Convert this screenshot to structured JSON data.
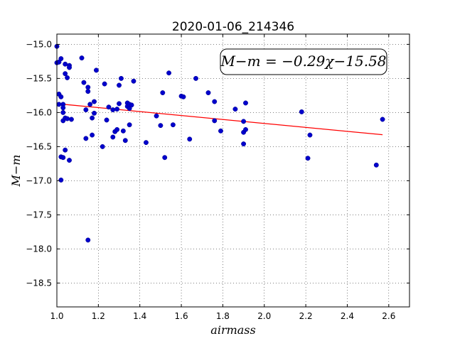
{
  "chart_data": {
    "type": "scatter",
    "title": "2020-01-06_214346",
    "xlabel": "airmass",
    "ylabel": "M−m",
    "xlim": [
      1.0,
      2.7
    ],
    "ylim": [
      -18.85,
      -14.85
    ],
    "y_inverted": true,
    "grid": true,
    "x_ticks": [
      "1.0",
      "1.2",
      "1.4",
      "1.6",
      "1.8",
      "2.0",
      "2.2",
      "2.4",
      "2.6"
    ],
    "x_tick_values": [
      1.0,
      1.2,
      1.4,
      1.6,
      1.8,
      2.0,
      2.2,
      2.4,
      2.6
    ],
    "y_ticks": [
      "−15.0",
      "−15.5",
      "−16.0",
      "−16.5",
      "−17.0",
      "−17.5",
      "−18.0",
      "−18.5"
    ],
    "y_tick_values": [
      -15.0,
      -15.5,
      -16.0,
      -16.5,
      -17.0,
      -17.5,
      -18.0,
      -18.5
    ],
    "annotation": "M−m = −0.29χ−15.58",
    "annotation_position": "top-right",
    "marker_color": "#0000cc",
    "fit_color": "#ff0000",
    "fit": {
      "slope": -0.29,
      "intercept": -15.58,
      "x_range": [
        1.0,
        2.57
      ]
    },
    "points": [
      [
        1.0,
        -15.03
      ],
      [
        1.0,
        -15.27
      ],
      [
        1.01,
        -15.26
      ],
      [
        1.01,
        -15.73
      ],
      [
        1.01,
        -15.88
      ],
      [
        1.02,
        -15.21
      ],
      [
        1.02,
        -16.65
      ],
      [
        1.02,
        -16.99
      ],
      [
        1.02,
        -15.77
      ],
      [
        1.03,
        -15.88
      ],
      [
        1.03,
        -15.93
      ],
      [
        1.03,
        -16.0
      ],
      [
        1.03,
        -16.12
      ],
      [
        1.03,
        -16.66
      ],
      [
        1.04,
        -16.08
      ],
      [
        1.04,
        -15.29
      ],
      [
        1.04,
        -15.43
      ],
      [
        1.05,
        -15.49
      ],
      [
        1.05,
        -16.09
      ],
      [
        1.04,
        -16.55
      ],
      [
        1.06,
        -15.31
      ],
      [
        1.06,
        -15.34
      ],
      [
        1.06,
        -16.7
      ],
      [
        1.07,
        -16.1
      ],
      [
        1.12,
        -15.2
      ],
      [
        1.13,
        -15.56
      ],
      [
        1.14,
        -16.38
      ],
      [
        1.14,
        -15.96
      ],
      [
        1.15,
        -15.69
      ],
      [
        1.15,
        -15.63
      ],
      [
        1.16,
        -15.88
      ],
      [
        1.17,
        -16.08
      ],
      [
        1.17,
        -16.33
      ],
      [
        1.18,
        -15.84
      ],
      [
        1.18,
        -16.01
      ],
      [
        1.19,
        -15.38
      ],
      [
        1.15,
        -17.87
      ],
      [
        1.22,
        -16.5
      ],
      [
        1.23,
        -15.58
      ],
      [
        1.24,
        -16.11
      ],
      [
        1.25,
        -15.92
      ],
      [
        1.27,
        -15.96
      ],
      [
        1.27,
        -16.36
      ],
      [
        1.28,
        -16.28
      ],
      [
        1.29,
        -16.25
      ],
      [
        1.29,
        -15.95
      ],
      [
        1.3,
        -15.6
      ],
      [
        1.3,
        -15.87
      ],
      [
        1.31,
        -15.5
      ],
      [
        1.32,
        -16.27
      ],
      [
        1.33,
        -16.41
      ],
      [
        1.34,
        -15.86
      ],
      [
        1.34,
        -15.91
      ],
      [
        1.35,
        -15.94
      ],
      [
        1.35,
        -15.88
      ],
      [
        1.36,
        -15.89
      ],
      [
        1.35,
        -16.18
      ],
      [
        1.37,
        -15.54
      ],
      [
        1.43,
        -16.44
      ],
      [
        1.48,
        -16.05
      ],
      [
        1.5,
        -16.19
      ],
      [
        1.51,
        -15.71
      ],
      [
        1.52,
        -16.66
      ],
      [
        1.54,
        -15.42
      ],
      [
        1.56,
        -16.18
      ],
      [
        1.6,
        -15.76
      ],
      [
        1.61,
        -15.77
      ],
      [
        1.64,
        -16.39
      ],
      [
        1.67,
        -15.5
      ],
      [
        1.73,
        -15.71
      ],
      [
        1.76,
        -15.84
      ],
      [
        1.76,
        -16.12
      ],
      [
        1.79,
        -16.27
      ],
      [
        1.86,
        -15.95
      ],
      [
        1.9,
        -16.29
      ],
      [
        1.9,
        -16.13
      ],
      [
        1.9,
        -16.46
      ],
      [
        1.91,
        -15.86
      ],
      [
        1.91,
        -16.25
      ],
      [
        2.18,
        -15.99
      ],
      [
        2.21,
        -16.67
      ],
      [
        2.22,
        -16.33
      ],
      [
        2.54,
        -16.77
      ],
      [
        2.57,
        -16.1
      ]
    ]
  }
}
